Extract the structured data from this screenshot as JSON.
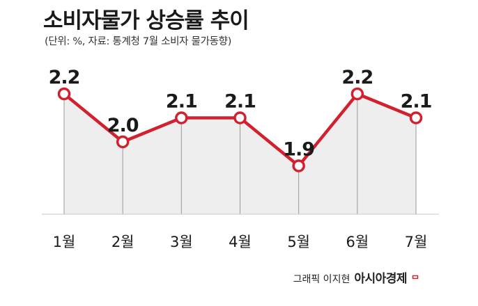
{
  "header": {
    "title": "소비자물가 상승률 추이",
    "subtitle": "(단위: %, 자료: 통계청 7월 소비자 물가동향)"
  },
  "footer": {
    "credit": "그래픽 이지현",
    "brand": "아시아경제",
    "brand_mark": "ᄆ"
  },
  "colors": {
    "line": "#d3202f",
    "area": "#eeeeee",
    "guide": "#9a9a9a",
    "text": "#1a1a1a"
  },
  "chart_data": {
    "type": "line",
    "title": "소비자물가 상승률 추이",
    "categories": [
      "1월",
      "2월",
      "3월",
      "4월",
      "5월",
      "6월",
      "7월"
    ],
    "values": [
      2.2,
      2.0,
      2.1,
      2.1,
      1.9,
      2.2,
      2.1
    ],
    "data_labels": [
      "2.2",
      "2.0",
      "2.1",
      "2.1",
      "1.9",
      "2.2",
      "2.1"
    ],
    "xlabel": "",
    "ylabel": "",
    "grid": false,
    "legend": "none"
  }
}
